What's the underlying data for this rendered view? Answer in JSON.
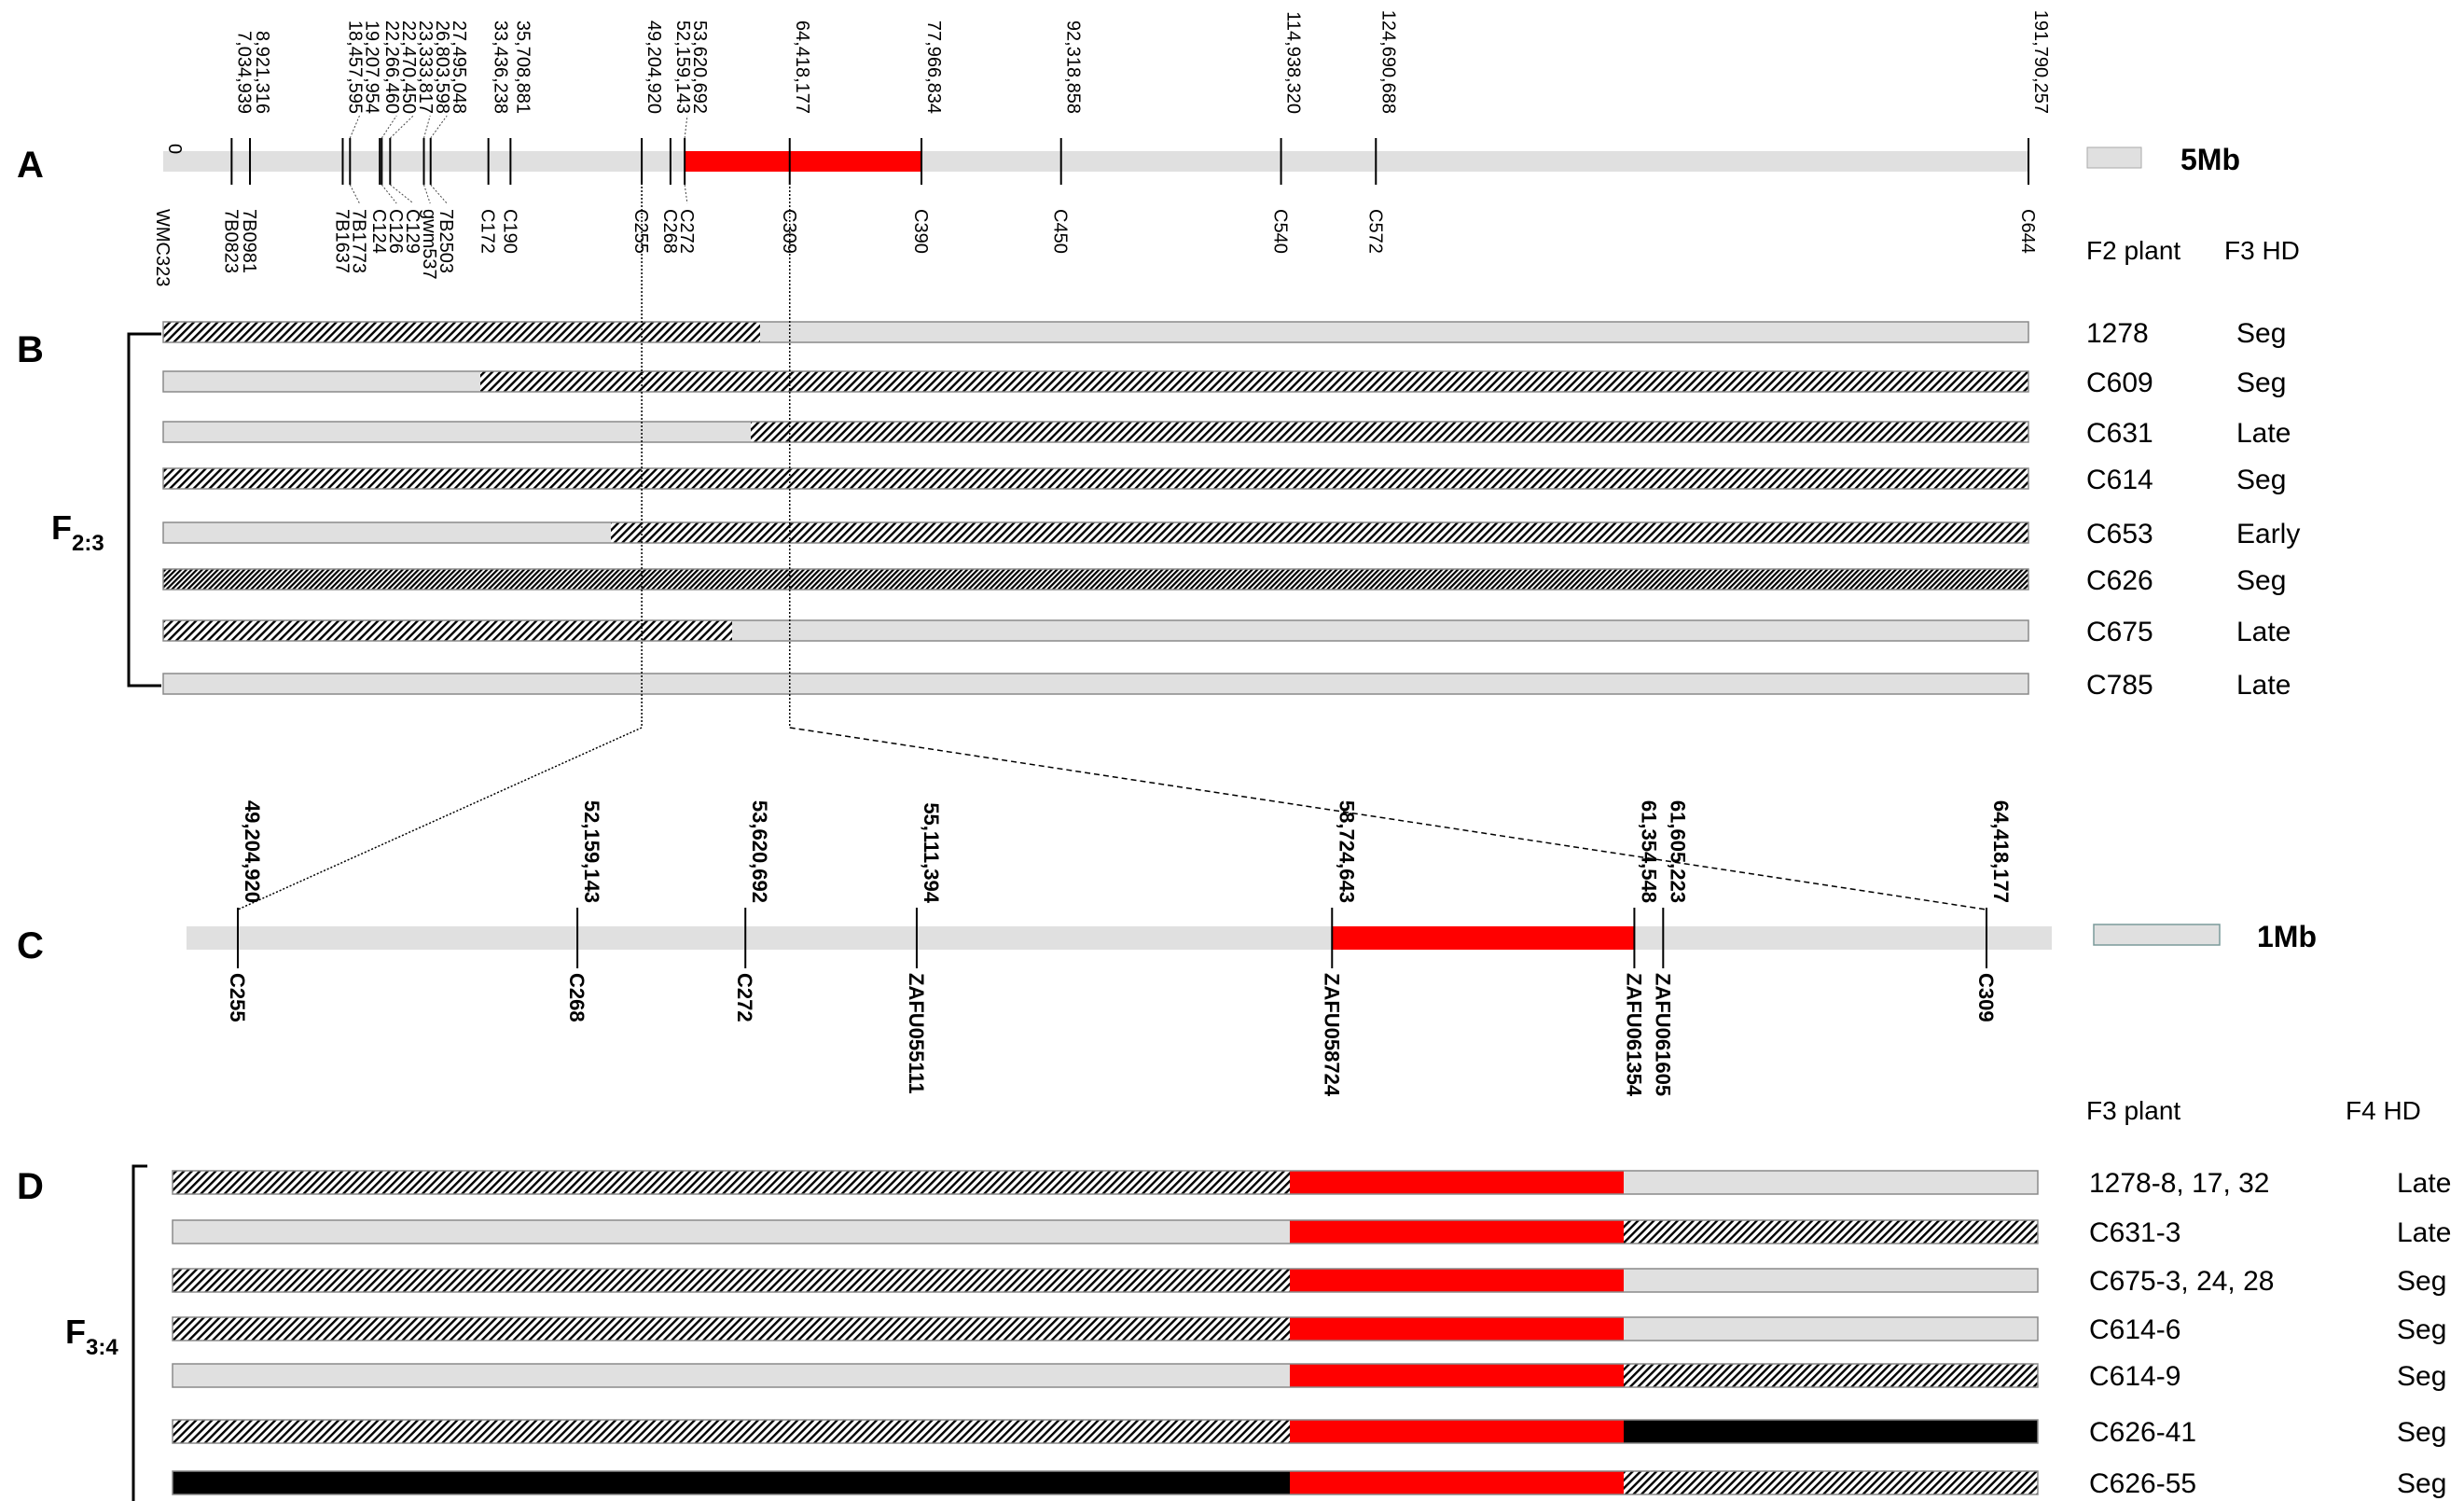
{
  "panels": {
    "a": "A",
    "b": "B",
    "c": "C",
    "d": "D",
    "f23": {
      "main": "F",
      "sub": "2:3"
    },
    "f34": {
      "main": "F",
      "sub": "3:4"
    }
  },
  "colors": {
    "bar": "#e0e0e0",
    "red": "#ff0000",
    "black": "#000000",
    "edge": "#8a8a8a"
  },
  "map_a": {
    "range_bp": [
      0,
      191790257
    ],
    "origin_label": "0",
    "scale_label": "5Mb",
    "red_region_bp": [
      53620692,
      77966834
    ],
    "positions_top": [
      {
        "bp": 0,
        "text": "0"
      },
      {
        "bp": 7034939,
        "text": "7,034,939"
      },
      {
        "bp": 8921316,
        "text": "8,921,316"
      },
      {
        "bp": 18457595,
        "text": "18,457,595"
      },
      {
        "bp": 19207954,
        "text": "19,207,954"
      },
      {
        "bp": 22266460,
        "text": "22,266,460"
      },
      {
        "bp": 22470450,
        "text": "22,470,450"
      },
      {
        "bp": 23333817,
        "text": "23,333,817"
      },
      {
        "bp": 26803598,
        "text": "26,803,598"
      },
      {
        "bp": 27495048,
        "text": "27,495,048"
      },
      {
        "bp": 33436238,
        "text": "33,436,238"
      },
      {
        "bp": 35708881,
        "text": "35,708,881"
      },
      {
        "bp": 49204920,
        "text": "49,204,920"
      },
      {
        "bp": 52159143,
        "text": "52,159,143"
      },
      {
        "bp": 53620692,
        "text": "53,620,692"
      },
      {
        "bp": 64418177,
        "text": "64,418,177"
      },
      {
        "bp": 77966834,
        "text": "77,966,834"
      },
      {
        "bp": 92318858,
        "text": "92,318,858"
      },
      {
        "bp": 114938320,
        "text": "114,938,320"
      },
      {
        "bp": 124690688,
        "text": "124,690,688"
      },
      {
        "bp": 191790257,
        "text": "191,790,257"
      }
    ],
    "markers_bottom": [
      {
        "bp": 0,
        "text": "WMC323"
      },
      {
        "bp": 7034939,
        "text": "7B0823"
      },
      {
        "bp": 8921316,
        "text": "7B0981"
      },
      {
        "bp": 18457595,
        "text": "7B1637"
      },
      {
        "bp": 19207954,
        "text": "7B1773"
      },
      {
        "bp": 22266460,
        "text": "C124"
      },
      {
        "bp": 22470450,
        "text": "C126"
      },
      {
        "bp": 23333817,
        "text": "C129"
      },
      {
        "bp": 26803598,
        "text": "gwm537"
      },
      {
        "bp": 27495048,
        "text": "7B2503"
      },
      {
        "bp": 33436238,
        "text": "C172"
      },
      {
        "bp": 35708881,
        "text": "C190"
      },
      {
        "bp": 49204920,
        "text": "C255"
      },
      {
        "bp": 52159143,
        "text": "C268"
      },
      {
        "bp": 53620692,
        "text": "C272"
      },
      {
        "bp": 64418177,
        "text": "C309"
      },
      {
        "bp": 77966834,
        "text": "C390"
      },
      {
        "bp": 92318858,
        "text": "C450"
      },
      {
        "bp": 114938320,
        "text": "C540"
      },
      {
        "bp": 124690688,
        "text": "C572"
      },
      {
        "bp": 191790257,
        "text": "C644"
      }
    ]
  },
  "map_c": {
    "range_bp": [
      49204920,
      64418177
    ],
    "scale_label": "1Mb",
    "red_region_bp": [
      58724643,
      61354548
    ],
    "positions_top": [
      {
        "bp": 49204920,
        "text": "49,204,920"
      },
      {
        "bp": 52159143,
        "text": "52,159,143"
      },
      {
        "bp": 53620692,
        "text": "53,620,692"
      },
      {
        "bp": 55111394,
        "text": "55,111,394"
      },
      {
        "bp": 58724643,
        "text": "58,724,643"
      },
      {
        "bp": 61354548,
        "text": "61,354,548"
      },
      {
        "bp": 61605223,
        "text": "61,605,223"
      },
      {
        "bp": 64418177,
        "text": "64,418,177"
      }
    ],
    "markers_bottom": [
      {
        "bp": 49204920,
        "text": "C255"
      },
      {
        "bp": 52159143,
        "text": "C268"
      },
      {
        "bp": 53620692,
        "text": "C272"
      },
      {
        "bp": 55111394,
        "text": "ZAFU055111"
      },
      {
        "bp": 58724643,
        "text": "ZAFU058724"
      },
      {
        "bp": 61354548,
        "text": "ZAFU061354"
      },
      {
        "bp": 61605223,
        "text": "ZAFU061605"
      },
      {
        "bp": 64418177,
        "text": "C309"
      }
    ]
  },
  "panel_b": {
    "header_plant": "F2 plant",
    "header_hd": "F3 HD",
    "rows": [
      {
        "plant": "1278",
        "hd": "Seg",
        "segments": [
          {
            "to": 0.32,
            "type": "hatch"
          },
          {
            "to": 1.0,
            "type": "grey"
          }
        ]
      },
      {
        "plant": "C609",
        "hd": "Seg",
        "segments": [
          {
            "to": 0.17,
            "type": "grey"
          },
          {
            "to": 1.0,
            "type": "hatch"
          }
        ]
      },
      {
        "plant": "C631",
        "hd": "Late",
        "segments": [
          {
            "to": 0.315,
            "type": "grey"
          },
          {
            "to": 1.0,
            "type": "hatch"
          }
        ]
      },
      {
        "plant": "C614",
        "hd": "Seg",
        "segments": [
          {
            "to": 1.0,
            "type": "hatch"
          }
        ]
      },
      {
        "plant": "C653",
        "hd": "Early",
        "segments": [
          {
            "to": 0.24,
            "type": "grey"
          },
          {
            "to": 1.0,
            "type": "hatch"
          }
        ]
      },
      {
        "plant": "C626",
        "hd": "Seg",
        "segments": [
          {
            "to": 1.0,
            "type": "dense"
          }
        ]
      },
      {
        "plant": "C675",
        "hd": "Late",
        "segments": [
          {
            "to": 0.305,
            "type": "hatch"
          },
          {
            "to": 1.0,
            "type": "grey"
          }
        ]
      },
      {
        "plant": "C785",
        "hd": "Late",
        "segments": [
          {
            "to": 1.0,
            "type": "grey"
          }
        ]
      }
    ]
  },
  "panel_d": {
    "header_plant": "F3 plant",
    "header_hd": "F4 HD",
    "rows": [
      {
        "plant": "1278-8, 17, 32",
        "hd": "Late",
        "segments": [
          {
            "to": 0.599,
            "type": "hatch"
          },
          {
            "to": 0.778,
            "type": "red"
          },
          {
            "to": 1.0,
            "type": "grey"
          }
        ]
      },
      {
        "plant": "C631-3",
        "hd": "Late",
        "segments": [
          {
            "to": 0.599,
            "type": "grey"
          },
          {
            "to": 0.778,
            "type": "red"
          },
          {
            "to": 1.0,
            "type": "hatch"
          }
        ]
      },
      {
        "plant": "C675-3, 24, 28",
        "hd": "Seg",
        "segments": [
          {
            "to": 0.599,
            "type": "hatch"
          },
          {
            "to": 0.778,
            "type": "red"
          },
          {
            "to": 1.0,
            "type": "grey"
          }
        ]
      },
      {
        "plant": "C614-6",
        "hd": "Seg",
        "segments": [
          {
            "to": 0.599,
            "type": "hatch"
          },
          {
            "to": 0.778,
            "type": "red"
          },
          {
            "to": 1.0,
            "type": "grey"
          }
        ]
      },
      {
        "plant": "C614-9",
        "hd": "Seg",
        "segments": [
          {
            "to": 0.599,
            "type": "grey"
          },
          {
            "to": 0.778,
            "type": "red"
          },
          {
            "to": 1.0,
            "type": "hatch"
          }
        ]
      },
      {
        "plant": "C626-41",
        "hd": "Seg",
        "segments": [
          {
            "to": 0.599,
            "type": "hatch"
          },
          {
            "to": 0.778,
            "type": "red"
          },
          {
            "to": 1.0,
            "type": "black"
          }
        ]
      },
      {
        "plant": "C626-55",
        "hd": "Seg",
        "segments": [
          {
            "to": 0.599,
            "type": "black"
          },
          {
            "to": 0.778,
            "type": "red"
          },
          {
            "to": 1.0,
            "type": "hatch"
          }
        ]
      }
    ]
  }
}
